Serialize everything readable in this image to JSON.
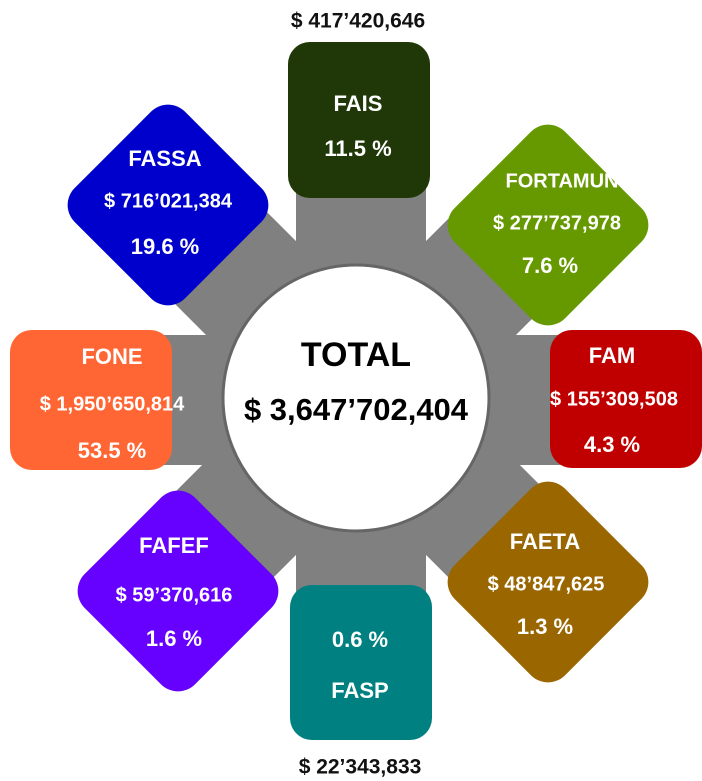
{
  "total": {
    "label": "TOTAL",
    "amount": "$ 3,647’702,404"
  },
  "funds": [
    {
      "name": "FAIS",
      "amount": "$ 417’420,646",
      "percent": "11.5 %"
    },
    {
      "name": "FORTAMUN",
      "amount": "$ 277’737,978",
      "percent": "7.6 %"
    },
    {
      "name": "FAM",
      "amount": "$ 155’309,508",
      "percent": "4.3 %"
    },
    {
      "name": "FAETA",
      "amount": "$ 48’847,625",
      "percent": "1.3 %"
    },
    {
      "name": "FASP",
      "amount": "$ 22’343,833",
      "percent": "0.6 %"
    },
    {
      "name": "FAFEF",
      "amount": "$ 59’370,616",
      "percent": "1.6 %"
    },
    {
      "name": "FONE",
      "amount": "$ 1,950’650,814",
      "percent": "53.5 %"
    },
    {
      "name": "FASSA",
      "amount": "$ 716’021,384",
      "percent": "19.6 %"
    }
  ]
}
